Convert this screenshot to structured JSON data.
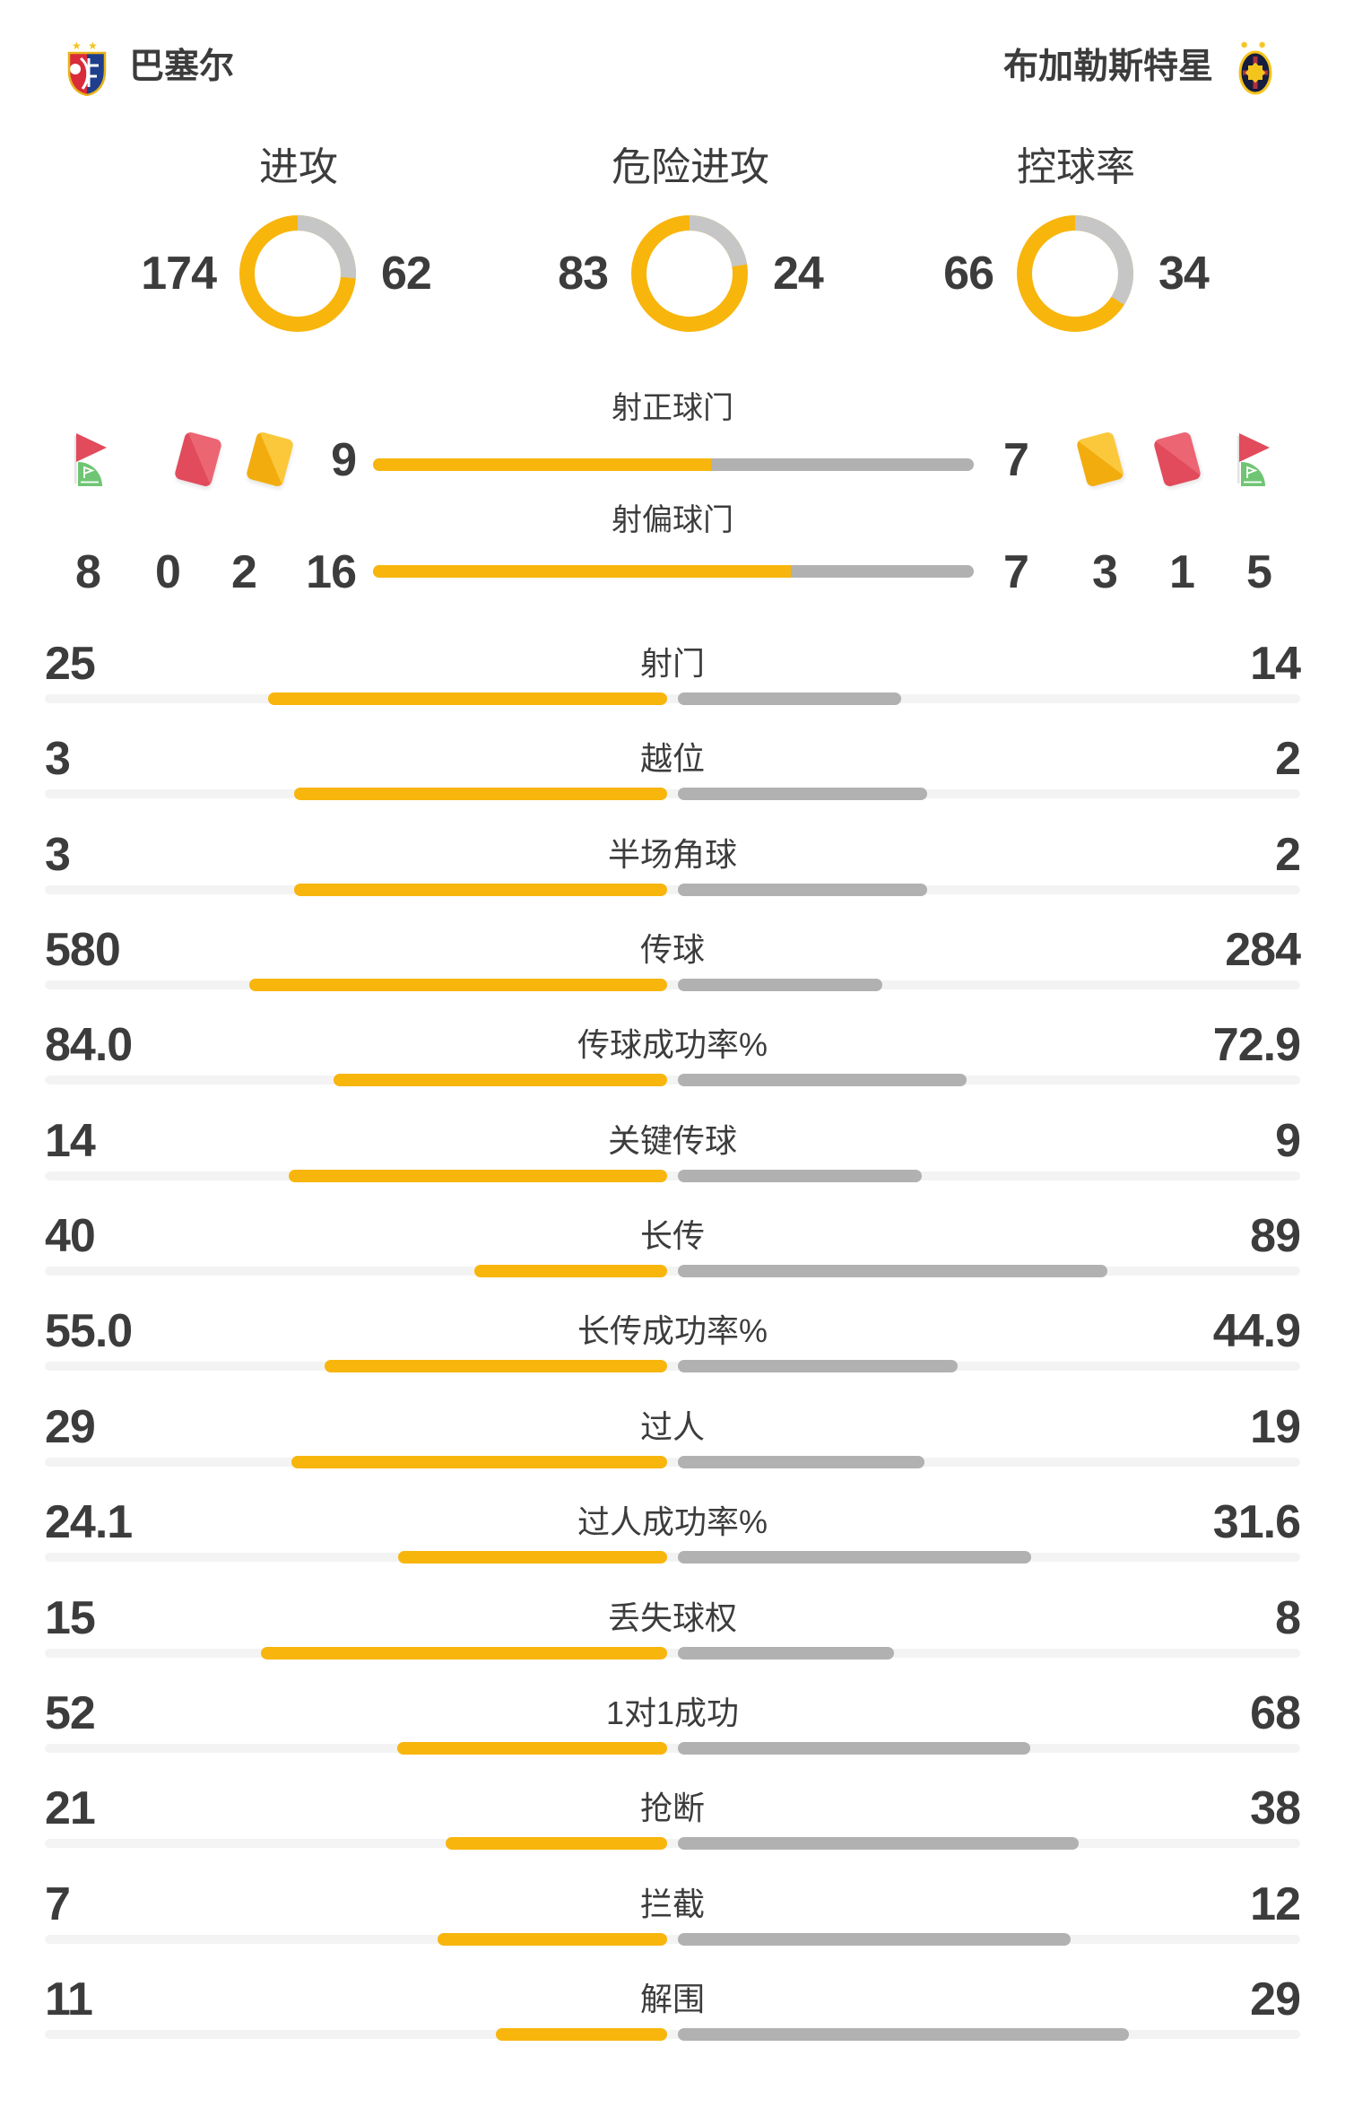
{
  "colors": {
    "yellow": "#F8B50C",
    "yellow_card_light": "#FBC83B",
    "red": "#E14B5C",
    "red_card_light": "#EC6573",
    "gray_donut": "#C6C6C6",
    "gray_bar": "#B1B1B1",
    "track": "#F3F3F3",
    "text": "#3C3C3C",
    "green": "#6FC573",
    "pole": "#E3E3E3",
    "gold": "#F4C41C",
    "crest_red": "#D92B3A",
    "crest_blue": "#1F3E8C",
    "crest_navy": "#171D3E"
  },
  "header": {
    "home_name": "巴塞尔",
    "away_name": "布加勒斯特星",
    "home_badge_icon": "fc-basel-crest",
    "away_badge_icon": "steaua-bucharest-crest"
  },
  "chart_data": {
    "type": "bar",
    "subtype": "football-match-comparison",
    "legend": {
      "home_color": "yellow",
      "away_color": "gray"
    },
    "donuts": [
      {
        "label": "进攻",
        "home": 174,
        "away": 62
      },
      {
        "label": "危险进攻",
        "home": 83,
        "away": 24
      },
      {
        "label": "控球率",
        "home": 66,
        "away": 34
      }
    ],
    "shot_bars": [
      {
        "label": "射正球门",
        "home": 9,
        "away": 7
      },
      {
        "label": "射偏球门",
        "home": 16,
        "away": 7
      }
    ],
    "cards_corners": {
      "home": {
        "corner_kicks": 8,
        "red_cards": 0,
        "yellow_cards": 2
      },
      "away": {
        "yellow_cards": 3,
        "red_cards": 1,
        "corner_kicks": 5
      }
    },
    "stats": [
      {
        "label": "射门",
        "home": "25",
        "away": "14"
      },
      {
        "label": "越位",
        "home": "3",
        "away": "2"
      },
      {
        "label": "半场角球",
        "home": "3",
        "away": "2"
      },
      {
        "label": "传球",
        "home": "580",
        "away": "284"
      },
      {
        "label": "传球成功率%",
        "home": "84.0",
        "away": "72.9"
      },
      {
        "label": "关键传球",
        "home": "14",
        "away": "9"
      },
      {
        "label": "长传",
        "home": "40",
        "away": "89"
      },
      {
        "label": "长传成功率%",
        "home": "55.0",
        "away": "44.9"
      },
      {
        "label": "过人",
        "home": "29",
        "away": "19"
      },
      {
        "label": "过人成功率%",
        "home": "24.1",
        "away": "31.6"
      },
      {
        "label": "丢失球权",
        "home": "15",
        "away": "8"
      },
      {
        "label": "1对1成功",
        "home": "52",
        "away": "68"
      },
      {
        "label": "抢断",
        "home": "21",
        "away": "38"
      },
      {
        "label": "拦截",
        "home": "7",
        "away": "12"
      },
      {
        "label": "解围",
        "home": "11",
        "away": "29"
      }
    ]
  }
}
